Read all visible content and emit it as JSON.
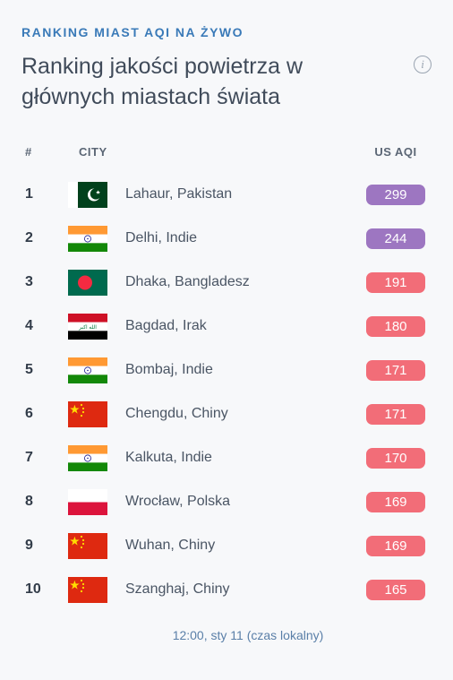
{
  "colors": {
    "accent_text": "#3a7ab8",
    "badge_purple": "#9d76c1",
    "badge_red": "#f26d78"
  },
  "eyebrow": "RANKING MIAST AQI NA ŻYWO",
  "title": "Ranking jakości powietrza w głównych miastach świata",
  "headers": {
    "rank": "#",
    "city": "CITY",
    "aqi": "US AQI"
  },
  "rows": [
    {
      "rank": "1",
      "flag_key": "pakistan",
      "city": "Lahaur, Pakistan",
      "aqi": "299",
      "level": "purple"
    },
    {
      "rank": "2",
      "flag_key": "india",
      "city": "Delhi, Indie",
      "aqi": "244",
      "level": "purple"
    },
    {
      "rank": "3",
      "flag_key": "bangladesh",
      "city": "Dhaka, Bangladesz",
      "aqi": "191",
      "level": "red"
    },
    {
      "rank": "4",
      "flag_key": "iraq",
      "city": "Bagdad, Irak",
      "aqi": "180",
      "level": "red"
    },
    {
      "rank": "5",
      "flag_key": "india",
      "city": "Bombaj, Indie",
      "aqi": "171",
      "level": "red"
    },
    {
      "rank": "6",
      "flag_key": "china",
      "city": "Chengdu, Chiny",
      "aqi": "171",
      "level": "red"
    },
    {
      "rank": "7",
      "flag_key": "india",
      "city": "Kalkuta, Indie",
      "aqi": "170",
      "level": "red"
    },
    {
      "rank": "8",
      "flag_key": "poland",
      "city": "Wrocław, Polska",
      "aqi": "169",
      "level": "red"
    },
    {
      "rank": "9",
      "flag_key": "china",
      "city": "Wuhan, Chiny",
      "aqi": "169",
      "level": "red"
    },
    {
      "rank": "10",
      "flag_key": "china",
      "city": "Szanghaj, Chiny",
      "aqi": "165",
      "level": "red"
    }
  ],
  "timestamp": "12:00, sty 11 (czas lokalny)"
}
